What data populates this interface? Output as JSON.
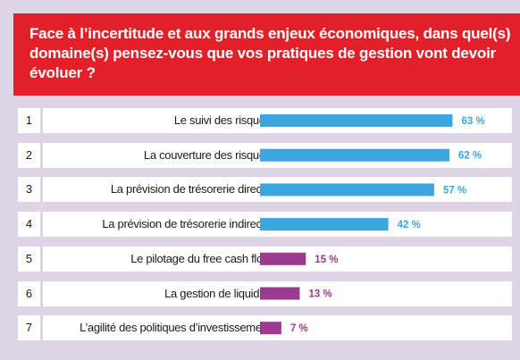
{
  "header": {
    "title": "Face à l’incertitude et aux grands enjeux économiques, dans quel(s) domaine(s) pensez-vous que vos pratiques de gestion vont devoir évoluer ?"
  },
  "colors": {
    "header_bg": "#e3202a",
    "frame_bg": "#ddd5e6",
    "bar_blue": "#3ba6e0",
    "bar_purple": "#9b3a8e",
    "label_blue": "#3ba6e0",
    "label_purple": "#9b3a8e"
  },
  "chart_data": {
    "type": "bar",
    "orientation": "horizontal",
    "unit": "%",
    "xlim": [
      0,
      70
    ],
    "grid": false,
    "categories": [
      "Le suivi des risques",
      "La couverture  des risques",
      "La prévision de trésorerie directe",
      "La prévision de trésorerie indirecte",
      "Le pilotage du free cash flow",
      "La gestion de liquidité",
      "L’agilité des politiques d’investissement"
    ],
    "ranks": [
      "1",
      "2",
      "3",
      "4",
      "5",
      "6",
      "7"
    ],
    "values": [
      63,
      62,
      57,
      42,
      15,
      13,
      7
    ],
    "value_labels": [
      "63 %",
      "62 %",
      "57 %",
      "42 %",
      "15 %",
      "13 %",
      "7 %"
    ],
    "bar_colors": [
      "#3ba6e0",
      "#3ba6e0",
      "#3ba6e0",
      "#3ba6e0",
      "#9b3a8e",
      "#9b3a8e",
      "#9b3a8e"
    ]
  }
}
